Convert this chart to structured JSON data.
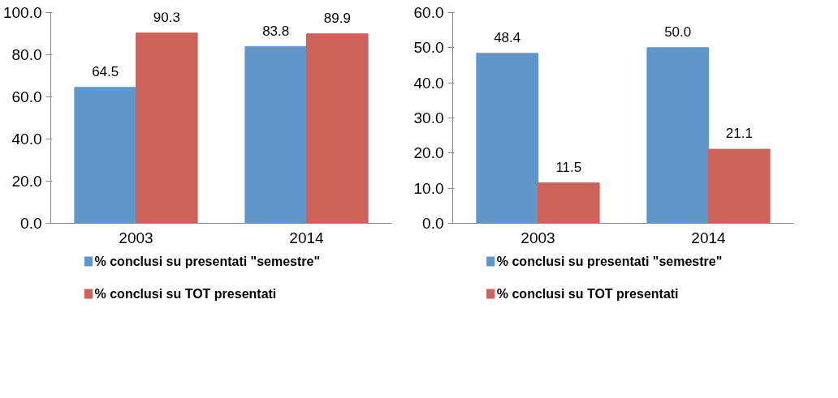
{
  "chart_data": [
    {
      "type": "bar",
      "categories": [
        "2003",
        "2014"
      ],
      "series": [
        {
          "name": "% conclusi su presentati \"semestre\"",
          "color": "#5f97cb",
          "values": [
            64.5,
            83.8
          ],
          "value_labels": [
            "64.5",
            "83.8"
          ]
        },
        {
          "name": "% conclusi su TOT presentati",
          "color": "#cd625a",
          "values": [
            90.3,
            89.9
          ],
          "value_labels": [
            "90.3",
            "89.9"
          ]
        }
      ],
      "ylim": [
        0,
        100
      ],
      "yticks": [
        {
          "value": 0,
          "label": "0.0"
        },
        {
          "value": 20,
          "label": "20.0"
        },
        {
          "value": 40,
          "label": "40.0"
        },
        {
          "value": 60,
          "label": "60.0"
        },
        {
          "value": 80,
          "label": "80.0"
        },
        {
          "value": 100,
          "label": "100.0"
        }
      ],
      "grid": false,
      "legend": "bottom"
    },
    {
      "type": "bar",
      "categories": [
        "2003",
        "2014"
      ],
      "series": [
        {
          "name": "% conclusi su presentati \"semestre\"",
          "color": "#5f97cb",
          "values": [
            48.4,
            50.0
          ],
          "value_labels": [
            "48.4",
            "50.0"
          ]
        },
        {
          "name": "% conclusi su TOT presentati",
          "color": "#cd625a",
          "values": [
            11.5,
            21.1
          ],
          "value_labels": [
            "11.5",
            "21.1"
          ]
        }
      ],
      "ylim": [
        0,
        60
      ],
      "yticks": [
        {
          "value": 0,
          "label": "0.0"
        },
        {
          "value": 10,
          "label": "10.0"
        },
        {
          "value": 20,
          "label": "20.0"
        },
        {
          "value": 30,
          "label": "30.0"
        },
        {
          "value": 40,
          "label": "40.0"
        },
        {
          "value": 50,
          "label": "50.0"
        },
        {
          "value": 60,
          "label": "60.0"
        }
      ],
      "grid": false,
      "legend": "bottom"
    }
  ]
}
